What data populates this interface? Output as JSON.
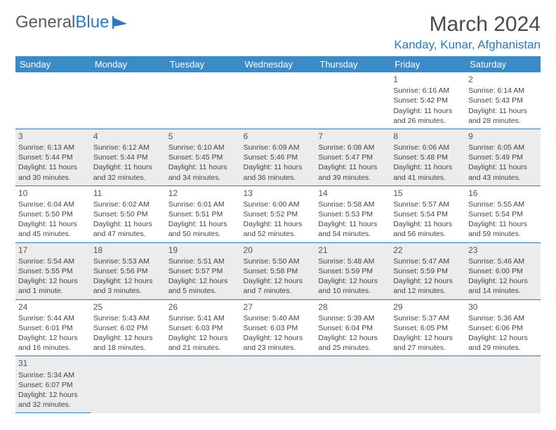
{
  "logo": {
    "text1": "General",
    "text2": "Blue"
  },
  "title": "March 2024",
  "location": "Kanday, Kunar, Afghanistan",
  "colors": {
    "header_bg": "#3b8bc9",
    "accent": "#2a7abf",
    "shaded": "#ececec",
    "text": "#333333"
  },
  "day_headers": [
    "Sunday",
    "Monday",
    "Tuesday",
    "Wednesday",
    "Thursday",
    "Friday",
    "Saturday"
  ],
  "weeks": [
    [
      null,
      null,
      null,
      null,
      null,
      {
        "d": "1",
        "sr": "Sunrise: 6:16 AM",
        "ss": "Sunset: 5:42 PM",
        "dl": "Daylight: 11 hours and 26 minutes."
      },
      {
        "d": "2",
        "sr": "Sunrise: 6:14 AM",
        "ss": "Sunset: 5:43 PM",
        "dl": "Daylight: 11 hours and 28 minutes."
      }
    ],
    [
      {
        "d": "3",
        "sr": "Sunrise: 6:13 AM",
        "ss": "Sunset: 5:44 PM",
        "dl": "Daylight: 11 hours and 30 minutes."
      },
      {
        "d": "4",
        "sr": "Sunrise: 6:12 AM",
        "ss": "Sunset: 5:44 PM",
        "dl": "Daylight: 11 hours and 32 minutes."
      },
      {
        "d": "5",
        "sr": "Sunrise: 6:10 AM",
        "ss": "Sunset: 5:45 PM",
        "dl": "Daylight: 11 hours and 34 minutes."
      },
      {
        "d": "6",
        "sr": "Sunrise: 6:09 AM",
        "ss": "Sunset: 5:46 PM",
        "dl": "Daylight: 11 hours and 36 minutes."
      },
      {
        "d": "7",
        "sr": "Sunrise: 6:08 AM",
        "ss": "Sunset: 5:47 PM",
        "dl": "Daylight: 11 hours and 39 minutes."
      },
      {
        "d": "8",
        "sr": "Sunrise: 6:06 AM",
        "ss": "Sunset: 5:48 PM",
        "dl": "Daylight: 11 hours and 41 minutes."
      },
      {
        "d": "9",
        "sr": "Sunrise: 6:05 AM",
        "ss": "Sunset: 5:49 PM",
        "dl": "Daylight: 11 hours and 43 minutes."
      }
    ],
    [
      {
        "d": "10",
        "sr": "Sunrise: 6:04 AM",
        "ss": "Sunset: 5:50 PM",
        "dl": "Daylight: 11 hours and 45 minutes."
      },
      {
        "d": "11",
        "sr": "Sunrise: 6:02 AM",
        "ss": "Sunset: 5:50 PM",
        "dl": "Daylight: 11 hours and 47 minutes."
      },
      {
        "d": "12",
        "sr": "Sunrise: 6:01 AM",
        "ss": "Sunset: 5:51 PM",
        "dl": "Daylight: 11 hours and 50 minutes."
      },
      {
        "d": "13",
        "sr": "Sunrise: 6:00 AM",
        "ss": "Sunset: 5:52 PM",
        "dl": "Daylight: 11 hours and 52 minutes."
      },
      {
        "d": "14",
        "sr": "Sunrise: 5:58 AM",
        "ss": "Sunset: 5:53 PM",
        "dl": "Daylight: 11 hours and 54 minutes."
      },
      {
        "d": "15",
        "sr": "Sunrise: 5:57 AM",
        "ss": "Sunset: 5:54 PM",
        "dl": "Daylight: 11 hours and 56 minutes."
      },
      {
        "d": "16",
        "sr": "Sunrise: 5:55 AM",
        "ss": "Sunset: 5:54 PM",
        "dl": "Daylight: 11 hours and 59 minutes."
      }
    ],
    [
      {
        "d": "17",
        "sr": "Sunrise: 5:54 AM",
        "ss": "Sunset: 5:55 PM",
        "dl": "Daylight: 12 hours and 1 minute."
      },
      {
        "d": "18",
        "sr": "Sunrise: 5:53 AM",
        "ss": "Sunset: 5:56 PM",
        "dl": "Daylight: 12 hours and 3 minutes."
      },
      {
        "d": "19",
        "sr": "Sunrise: 5:51 AM",
        "ss": "Sunset: 5:57 PM",
        "dl": "Daylight: 12 hours and 5 minutes."
      },
      {
        "d": "20",
        "sr": "Sunrise: 5:50 AM",
        "ss": "Sunset: 5:58 PM",
        "dl": "Daylight: 12 hours and 7 minutes."
      },
      {
        "d": "21",
        "sr": "Sunrise: 5:48 AM",
        "ss": "Sunset: 5:59 PM",
        "dl": "Daylight: 12 hours and 10 minutes."
      },
      {
        "d": "22",
        "sr": "Sunrise: 5:47 AM",
        "ss": "Sunset: 5:59 PM",
        "dl": "Daylight: 12 hours and 12 minutes."
      },
      {
        "d": "23",
        "sr": "Sunrise: 5:46 AM",
        "ss": "Sunset: 6:00 PM",
        "dl": "Daylight: 12 hours and 14 minutes."
      }
    ],
    [
      {
        "d": "24",
        "sr": "Sunrise: 5:44 AM",
        "ss": "Sunset: 6:01 PM",
        "dl": "Daylight: 12 hours and 16 minutes."
      },
      {
        "d": "25",
        "sr": "Sunrise: 5:43 AM",
        "ss": "Sunset: 6:02 PM",
        "dl": "Daylight: 12 hours and 18 minutes."
      },
      {
        "d": "26",
        "sr": "Sunrise: 5:41 AM",
        "ss": "Sunset: 6:03 PM",
        "dl": "Daylight: 12 hours and 21 minutes."
      },
      {
        "d": "27",
        "sr": "Sunrise: 5:40 AM",
        "ss": "Sunset: 6:03 PM",
        "dl": "Daylight: 12 hours and 23 minutes."
      },
      {
        "d": "28",
        "sr": "Sunrise: 5:39 AM",
        "ss": "Sunset: 6:04 PM",
        "dl": "Daylight: 12 hours and 25 minutes."
      },
      {
        "d": "29",
        "sr": "Sunrise: 5:37 AM",
        "ss": "Sunset: 6:05 PM",
        "dl": "Daylight: 12 hours and 27 minutes."
      },
      {
        "d": "30",
        "sr": "Sunrise: 5:36 AM",
        "ss": "Sunset: 6:06 PM",
        "dl": "Daylight: 12 hours and 29 minutes."
      }
    ],
    [
      {
        "d": "31",
        "sr": "Sunrise: 5:34 AM",
        "ss": "Sunset: 6:07 PM",
        "dl": "Daylight: 12 hours and 32 minutes."
      },
      null,
      null,
      null,
      null,
      null,
      null
    ]
  ]
}
